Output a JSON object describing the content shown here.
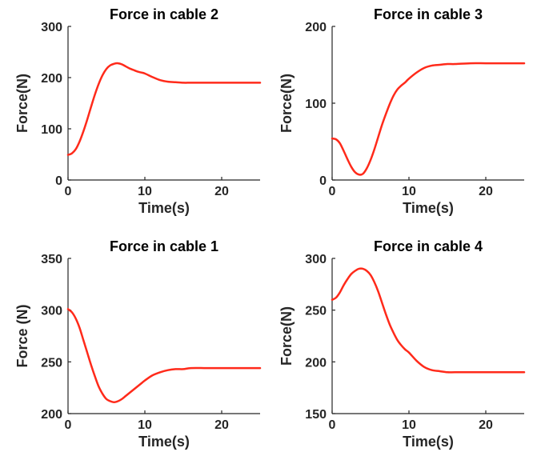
{
  "chart_data": [
    {
      "type": "line",
      "title": "Force in cable 2",
      "xlabel": "Time(s)",
      "ylabel": "Force(N)",
      "xlim": [
        0,
        25
      ],
      "ylim": [
        0,
        300
      ],
      "x_ticks": [
        0,
        10,
        20
      ],
      "y_ticks": [
        0,
        100,
        200,
        300
      ],
      "grid": false,
      "series": [
        {
          "color": "#ff2a1a",
          "x": [
            0,
            0.5,
            1,
            1.5,
            2,
            2.5,
            3,
            3.5,
            4,
            4.5,
            5,
            5.5,
            6,
            6.5,
            7,
            7.5,
            8,
            8.5,
            9,
            9.5,
            10,
            11,
            12,
            13,
            14,
            15,
            16,
            18,
            20,
            22,
            25
          ],
          "y": [
            49,
            52,
            60,
            75,
            95,
            118,
            143,
            167,
            188,
            205,
            217,
            224,
            227,
            228,
            226,
            222,
            218,
            215,
            212,
            210,
            208,
            201,
            195,
            192,
            191,
            190,
            190,
            190,
            190,
            190,
            190
          ]
        }
      ]
    },
    {
      "type": "line",
      "title": "Force in cable 3",
      "xlabel": "Time(s)",
      "ylabel": "Force(N)",
      "xlim": [
        0,
        25
      ],
      "ylim": [
        0,
        200
      ],
      "x_ticks": [
        0,
        10,
        20
      ],
      "y_ticks": [
        0,
        100,
        200
      ],
      "grid": false,
      "series": [
        {
          "color": "#ff2a1a",
          "x": [
            0,
            0.5,
            1,
            1.5,
            2,
            2.5,
            3,
            3.5,
            4,
            4.5,
            5,
            5.5,
            6,
            6.5,
            7,
            7.5,
            8,
            8.5,
            9,
            9.5,
            10,
            11,
            12,
            13,
            14,
            15,
            16,
            18,
            20,
            22,
            25
          ],
          "y": [
            54,
            53,
            48,
            38,
            27,
            17,
            10,
            7,
            8,
            15,
            26,
            40,
            56,
            72,
            86,
            99,
            110,
            118,
            123,
            127,
            132,
            140,
            146,
            149,
            150,
            151,
            151,
            152,
            152,
            152,
            152
          ]
        }
      ]
    },
    {
      "type": "line",
      "title": "Force in cable 1",
      "xlabel": "Time(s)",
      "ylabel": "Force (N)",
      "xlim": [
        0,
        25
      ],
      "ylim": [
        200,
        350
      ],
      "x_ticks": [
        0,
        10,
        20
      ],
      "y_ticks": [
        200,
        250,
        300,
        350
      ],
      "grid": false,
      "series": [
        {
          "color": "#ff2a1a",
          "x": [
            0,
            0.5,
            1,
            1.5,
            2,
            2.5,
            3,
            3.5,
            4,
            4.5,
            5,
            5.5,
            6,
            6.5,
            7,
            7.5,
            8,
            8.5,
            9,
            9.5,
            10,
            11,
            12,
            13,
            14,
            15,
            16,
            18,
            20,
            22,
            25
          ],
          "y": [
            301,
            298,
            292,
            283,
            271,
            259,
            247,
            236,
            226,
            219,
            214,
            212,
            211,
            212,
            214,
            217,
            220,
            223,
            226,
            229,
            232,
            237,
            240,
            242,
            243,
            243,
            244,
            244,
            244,
            244,
            244
          ]
        }
      ]
    },
    {
      "type": "line",
      "title": "Force in cable 4",
      "xlabel": "Time(s)",
      "ylabel": "Force(N)",
      "xlim": [
        0,
        25
      ],
      "ylim": [
        150,
        300
      ],
      "x_ticks": [
        0,
        10,
        20
      ],
      "y_ticks": [
        150,
        200,
        250,
        300
      ],
      "grid": false,
      "series": [
        {
          "color": "#ff2a1a",
          "x": [
            0,
            0.5,
            1,
            1.5,
            2,
            2.5,
            3,
            3.5,
            4,
            4.5,
            5,
            5.5,
            6,
            6.5,
            7,
            7.5,
            8,
            8.5,
            9,
            9.5,
            10,
            11,
            12,
            13,
            14,
            15,
            16,
            18,
            20,
            22,
            25
          ],
          "y": [
            260,
            262,
            267,
            274,
            280,
            285,
            288,
            290,
            290,
            288,
            284,
            277,
            268,
            257,
            246,
            236,
            228,
            221,
            216,
            212,
            209,
            201,
            195,
            192,
            191,
            190,
            190,
            190,
            190,
            190,
            190
          ]
        }
      ]
    }
  ]
}
